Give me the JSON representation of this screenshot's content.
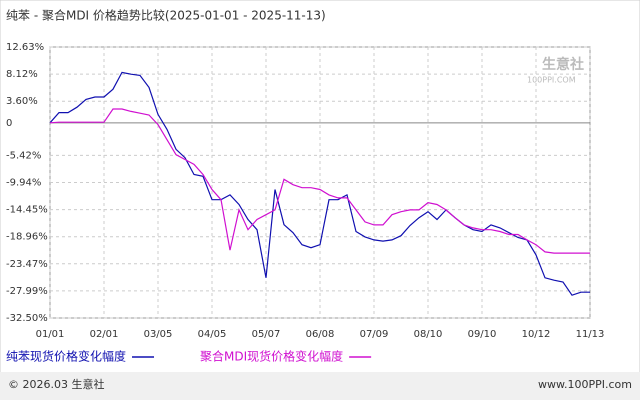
{
  "chart_data": {
    "type": "line",
    "title": "纯苯 - 聚合MDI 价格趋势比较(2025-01-01 - 2025-11-13)",
    "categories": [
      "01/01",
      null,
      null,
      null,
      null,
      null,
      "02/01",
      null,
      null,
      null,
      null,
      null,
      "03/05",
      null,
      null,
      null,
      null,
      null,
      "04/05",
      null,
      null,
      null,
      null,
      null,
      "05/07",
      null,
      null,
      null,
      null,
      null,
      "06/08",
      null,
      null,
      null,
      null,
      null,
      "07/09",
      null,
      null,
      null,
      null,
      null,
      "08/10",
      null,
      null,
      null,
      null,
      null,
      "09/10",
      null,
      null,
      null,
      null,
      null,
      "10/12",
      null,
      null,
      null,
      null,
      null,
      "11/13"
    ],
    "series": [
      {
        "name": "纯苯现货价格变化幅度",
        "color": "#1010b0",
        "values": [
          0,
          1.7,
          1.7,
          2.6,
          3.9,
          4.3,
          4.3,
          5.6,
          8.4,
          8.1,
          7.9,
          5.9,
          1.4,
          -1.1,
          -4.4,
          -5.8,
          -8.6,
          -8.9,
          -12.8,
          -12.8,
          -12.0,
          -13.6,
          -16.1,
          -17.8,
          -25.8,
          -11.1,
          -16.97,
          -18.3,
          -20.3,
          -20.8,
          -20.3,
          -12.8,
          -12.8,
          -12.0,
          -18.1,
          -19.0,
          -19.5,
          -19.7,
          -19.5,
          -18.8,
          -17.1,
          -15.8,
          -14.8,
          -16.1,
          -14.5,
          -15.8,
          -17.0,
          -17.8,
          -18.1,
          -17.0,
          -17.5,
          -18.3,
          -19.1,
          -19.5,
          -22.0,
          -25.8,
          -26.2,
          -26.5,
          -28.7,
          -28.2,
          -28.2
        ]
      },
      {
        "name": "聚合MDI现货价格变化幅度",
        "color": "#d010d0",
        "values": [
          0,
          0.1,
          0.1,
          0.1,
          0.1,
          0.1,
          0.1,
          2.3,
          2.3,
          1.9,
          1.6,
          1.3,
          -0.3,
          -2.8,
          -5.3,
          -6.1,
          -6.9,
          -8.6,
          -11.1,
          -12.8,
          -21.2,
          -14.5,
          -17.8,
          -16.1,
          -15.3,
          -14.5,
          -9.4,
          -10.3,
          -10.8,
          -10.8,
          -11.1,
          -12.0,
          -12.5,
          -12.5,
          -14.5,
          -16.5,
          -17.0,
          -17.0,
          -15.3,
          -14.8,
          -14.5,
          -14.5,
          -13.3,
          -13.6,
          -14.5,
          -15.8,
          -17.0,
          -17.5,
          -17.8,
          -17.8,
          -18.1,
          -18.6,
          -18.6,
          -19.5,
          -20.3,
          -21.5,
          -21.7,
          -21.7,
          -21.7,
          -21.7,
          -21.7
        ]
      }
    ],
    "ylim": [
      -32.5,
      12.63
    ],
    "yticks": [
      {
        "value": 12.63,
        "label": "12.63%"
      },
      {
        "value": 8.12,
        "label": "8.12%"
      },
      {
        "value": 3.6,
        "label": "3.60%"
      },
      0,
      {
        "value": -5.42,
        "label": "-5.42%"
      },
      {
        "value": -9.94,
        "label": "-9.94%"
      },
      {
        "value": -14.45,
        "label": "-14.45%"
      },
      {
        "value": -18.96,
        "label": "-18.96%"
      },
      {
        "value": -23.47,
        "label": "-23.47%"
      },
      {
        "value": -27.99,
        "label": "-27.99%"
      },
      {
        "value": -32.5,
        "label": "-32.50%"
      }
    ],
    "grid": true,
    "watermark": [
      "生意社",
      "100PPI.COM"
    ],
    "footer_left": "© 2026.03 生意社",
    "footer_right": "www.100PPI.com"
  }
}
